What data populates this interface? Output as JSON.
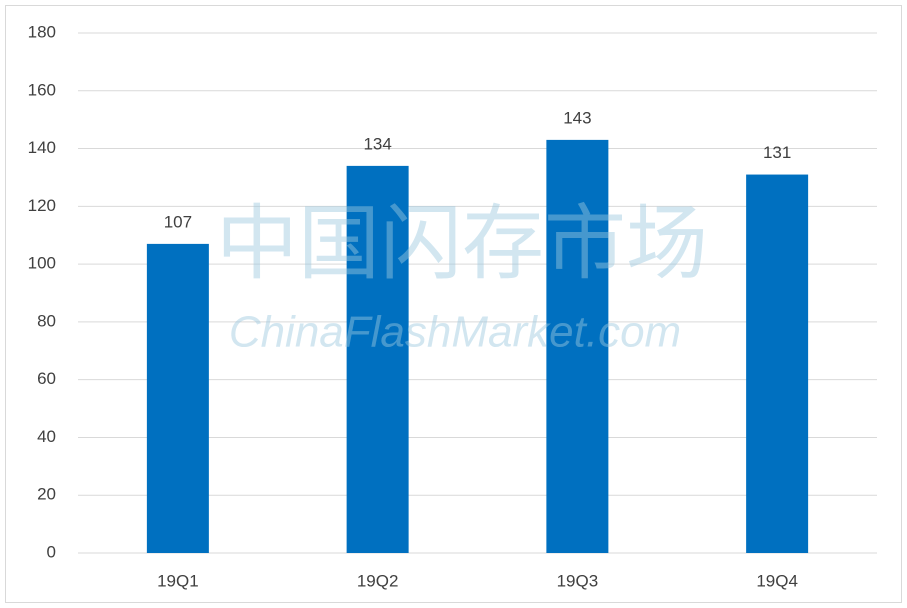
{
  "chart_data": {
    "type": "bar",
    "categories": [
      "19Q1",
      "19Q2",
      "19Q3",
      "19Q4"
    ],
    "values": [
      107,
      134,
      143,
      131
    ],
    "color": "#0070c0",
    "ylim": [
      0,
      180
    ],
    "yticks": [
      0,
      20,
      40,
      60,
      80,
      100,
      120,
      140,
      160,
      180
    ],
    "grid": true,
    "data_labels": true,
    "watermark": [
      "中国闪存市场",
      "ChinaFlashMarket.com"
    ]
  }
}
